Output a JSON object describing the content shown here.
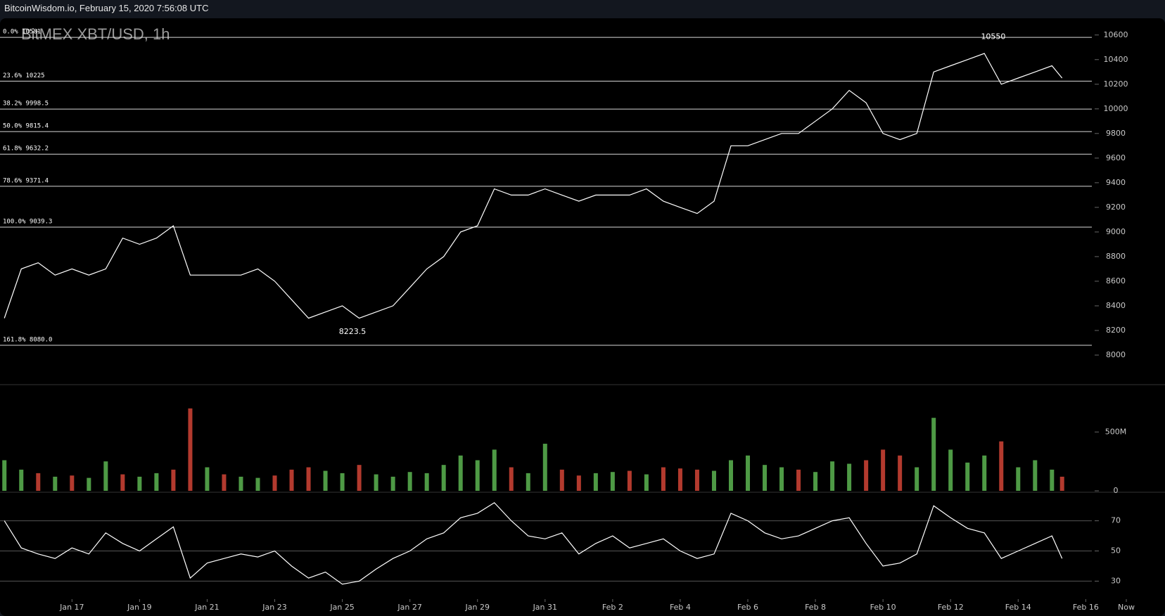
{
  "header": "BitcoinWisdom.io, February 15, 2020 7:56:08 UTC",
  "chart_data": [
    {
      "type": "line",
      "title": "BitMEX XBT/USD, 1h",
      "color": "#ffffff",
      "x": [
        15,
        15.5,
        16,
        16.5,
        17,
        17.5,
        18,
        18.5,
        19,
        19.5,
        20,
        20.5,
        21,
        21.5,
        22,
        22.5,
        23,
        23.5,
        24,
        24.5,
        25,
        25.5,
        26,
        26.5,
        27,
        27.5,
        28,
        28.5,
        29,
        29.5,
        30,
        30.5,
        31,
        31.5,
        32,
        32.5,
        33,
        33.5,
        34,
        34.5,
        35,
        35.5,
        36,
        36.5,
        37,
        37.5,
        38,
        38.5,
        39,
        39.5,
        40,
        40.5,
        41,
        41.5,
        42,
        42.5,
        43,
        43.5,
        44,
        44.5,
        45,
        45.5,
        46,
        46.3
      ],
      "values": [
        8300,
        8700,
        8750,
        8650,
        8700,
        8650,
        8700,
        8950,
        8900,
        8950,
        9050,
        8650,
        8650,
        8650,
        8650,
        8700,
        8600,
        8450,
        8300,
        8350,
        8400,
        8300,
        8350,
        8400,
        8550,
        8700,
        8800,
        9000,
        9050,
        9350,
        9300,
        9300,
        9350,
        9300,
        9250,
        9300,
        9300,
        9300,
        9350,
        9250,
        9200,
        9150,
        9250,
        9700,
        9700,
        9750,
        9800,
        9800,
        9900,
        10000,
        10150,
        10050,
        9800,
        9750,
        9800,
        10300,
        10350,
        10400,
        10450,
        10200,
        10250,
        10300,
        10350,
        10250
      ],
      "xlim": [
        14.87,
        47.18
      ],
      "ylim": [
        7760,
        10730
      ],
      "yticks": [
        8000,
        8200,
        8400,
        8600,
        8800,
        9000,
        9200,
        9400,
        9600,
        9800,
        10000,
        10200,
        10400,
        10600
      ],
      "fib_levels": [
        {
          "label": "0.0% 10581",
          "value": 10581
        },
        {
          "label": "23.6% 10225",
          "value": 10225
        },
        {
          "label": "38.2% 9998.5",
          "value": 9998.5
        },
        {
          "label": "50.0% 9815.4",
          "value": 9815.4
        },
        {
          "label": "61.8% 9632.2",
          "value": 9632.2
        },
        {
          "label": "78.6% 9371.4",
          "value": 9371.4
        },
        {
          "label": "100.0% 9039.3",
          "value": 9039.3
        },
        {
          "label": "161.8% 8080.0",
          "value": 8080
        }
      ],
      "annotations": [
        10550,
        8223.5
      ]
    },
    {
      "type": "bar",
      "x": [
        15,
        15.5,
        16,
        16.5,
        17,
        17.5,
        18,
        18.5,
        19,
        19.5,
        20,
        20.5,
        21,
        21.5,
        22,
        22.5,
        23,
        23.5,
        24,
        24.5,
        25,
        25.5,
        26,
        26.5,
        27,
        27.5,
        28,
        28.5,
        29,
        29.5,
        30,
        30.5,
        31,
        31.5,
        32,
        32.5,
        33,
        33.5,
        34,
        34.5,
        35,
        35.5,
        36,
        36.5,
        37,
        37.5,
        38,
        38.5,
        39,
        39.5,
        40,
        40.5,
        41,
        41.5,
        42,
        42.5,
        43,
        43.5,
        44,
        44.5,
        45,
        45.5,
        46,
        46.3
      ],
      "values": [
        260,
        180,
        150,
        120,
        130,
        110,
        250,
        140,
        120,
        150,
        180,
        700,
        200,
        140,
        120,
        110,
        130,
        180,
        200,
        170,
        150,
        220,
        140,
        120,
        160,
        150,
        220,
        300,
        260,
        350,
        200,
        150,
        400,
        180,
        130,
        150,
        160,
        170,
        140,
        200,
        190,
        180,
        170,
        260,
        300,
        220,
        200,
        180,
        160,
        250,
        230,
        260,
        350,
        300,
        200,
        620,
        350,
        240,
        300,
        420,
        200,
        260,
        180,
        120
      ],
      "colors": [
        "#4e9a45",
        "#4e9a45",
        "#b33a2e",
        "#4e9a45",
        "#b33a2e",
        "#4e9a45",
        "#4e9a45",
        "#b33a2e",
        "#4e9a45",
        "#4e9a45",
        "#b33a2e",
        "#b33a2e",
        "#4e9a45",
        "#b33a2e",
        "#4e9a45",
        "#4e9a45",
        "#b33a2e",
        "#b33a2e",
        "#b33a2e",
        "#4e9a45",
        "#4e9a45",
        "#b33a2e",
        "#4e9a45",
        "#4e9a45",
        "#4e9a45",
        "#4e9a45",
        "#4e9a45",
        "#4e9a45",
        "#4e9a45",
        "#4e9a45",
        "#b33a2e",
        "#4e9a45",
        "#4e9a45",
        "#b33a2e",
        "#b33a2e",
        "#4e9a45",
        "#4e9a45",
        "#b33a2e",
        "#4e9a45",
        "#b33a2e",
        "#b33a2e",
        "#b33a2e",
        "#4e9a45",
        "#4e9a45",
        "#4e9a45",
        "#4e9a45",
        "#4e9a45",
        "#b33a2e",
        "#4e9a45",
        "#4e9a45",
        "#4e9a45",
        "#b33a2e",
        "#b33a2e",
        "#b33a2e",
        "#4e9a45",
        "#4e9a45",
        "#4e9a45",
        "#4e9a45",
        "#4e9a45",
        "#b33a2e",
        "#4e9a45",
        "#4e9a45",
        "#4e9a45",
        "#b33a2e"
      ],
      "xlim": [
        14.87,
        47.18
      ],
      "ylim": [
        0,
        890
      ],
      "yticks": [
        0,
        {
          "value": 500,
          "label": "500M"
        }
      ]
    },
    {
      "type": "line",
      "color": "#ffffff",
      "x": [
        15,
        15.5,
        16,
        16.5,
        17,
        17.5,
        18,
        18.5,
        19,
        19.5,
        20,
        20.5,
        21,
        21.5,
        22,
        22.5,
        23,
        23.5,
        24,
        24.5,
        25,
        25.5,
        26,
        26.5,
        27,
        27.5,
        28,
        28.5,
        29,
        29.5,
        30,
        30.5,
        31,
        31.5,
        32,
        32.5,
        33,
        33.5,
        34,
        34.5,
        35,
        35.5,
        36,
        36.5,
        37,
        37.5,
        38,
        38.5,
        39,
        39.5,
        40,
        40.5,
        41,
        41.5,
        42,
        42.5,
        43,
        43.5,
        44,
        44.5,
        45,
        45.5,
        46,
        46.3
      ],
      "values": [
        70,
        52,
        48,
        45,
        52,
        48,
        62,
        55,
        50,
        58,
        66,
        32,
        42,
        45,
        48,
        46,
        50,
        40,
        32,
        36,
        28,
        30,
        38,
        45,
        50,
        58,
        62,
        72,
        75,
        82,
        70,
        60,
        58,
        62,
        48,
        55,
        60,
        52,
        55,
        58,
        50,
        45,
        48,
        75,
        70,
        62,
        58,
        60,
        65,
        70,
        72,
        55,
        40,
        42,
        48,
        80,
        72,
        65,
        62,
        45,
        50,
        55,
        60,
        45
      ],
      "xlim": [
        14.87,
        47.18
      ],
      "ylim": [
        19,
        88
      ],
      "yticks": [
        30,
        50,
        70
      ],
      "xticks": [
        {
          "value": 17,
          "label": "Jan 17"
        },
        {
          "value": 19,
          "label": "Jan 19"
        },
        {
          "value": 21,
          "label": "Jan 21"
        },
        {
          "value": 23,
          "label": "Jan 23"
        },
        {
          "value": 25,
          "label": "Jan 25"
        },
        {
          "value": 27,
          "label": "Jan 27"
        },
        {
          "value": 29,
          "label": "Jan 29"
        },
        {
          "value": 31,
          "label": "Jan 31"
        },
        {
          "value": 33,
          "label": "Feb 2"
        },
        {
          "value": 35,
          "label": "Feb 4"
        },
        {
          "value": 37,
          "label": "Feb 6"
        },
        {
          "value": 39,
          "label": "Feb 8"
        },
        {
          "value": 41,
          "label": "Feb 10"
        },
        {
          "value": 43,
          "label": "Feb 12"
        },
        {
          "value": 45,
          "label": "Feb 14"
        },
        {
          "value": 47,
          "label": "Feb 16"
        },
        {
          "value": 48.2,
          "label": "Now"
        }
      ]
    }
  ]
}
